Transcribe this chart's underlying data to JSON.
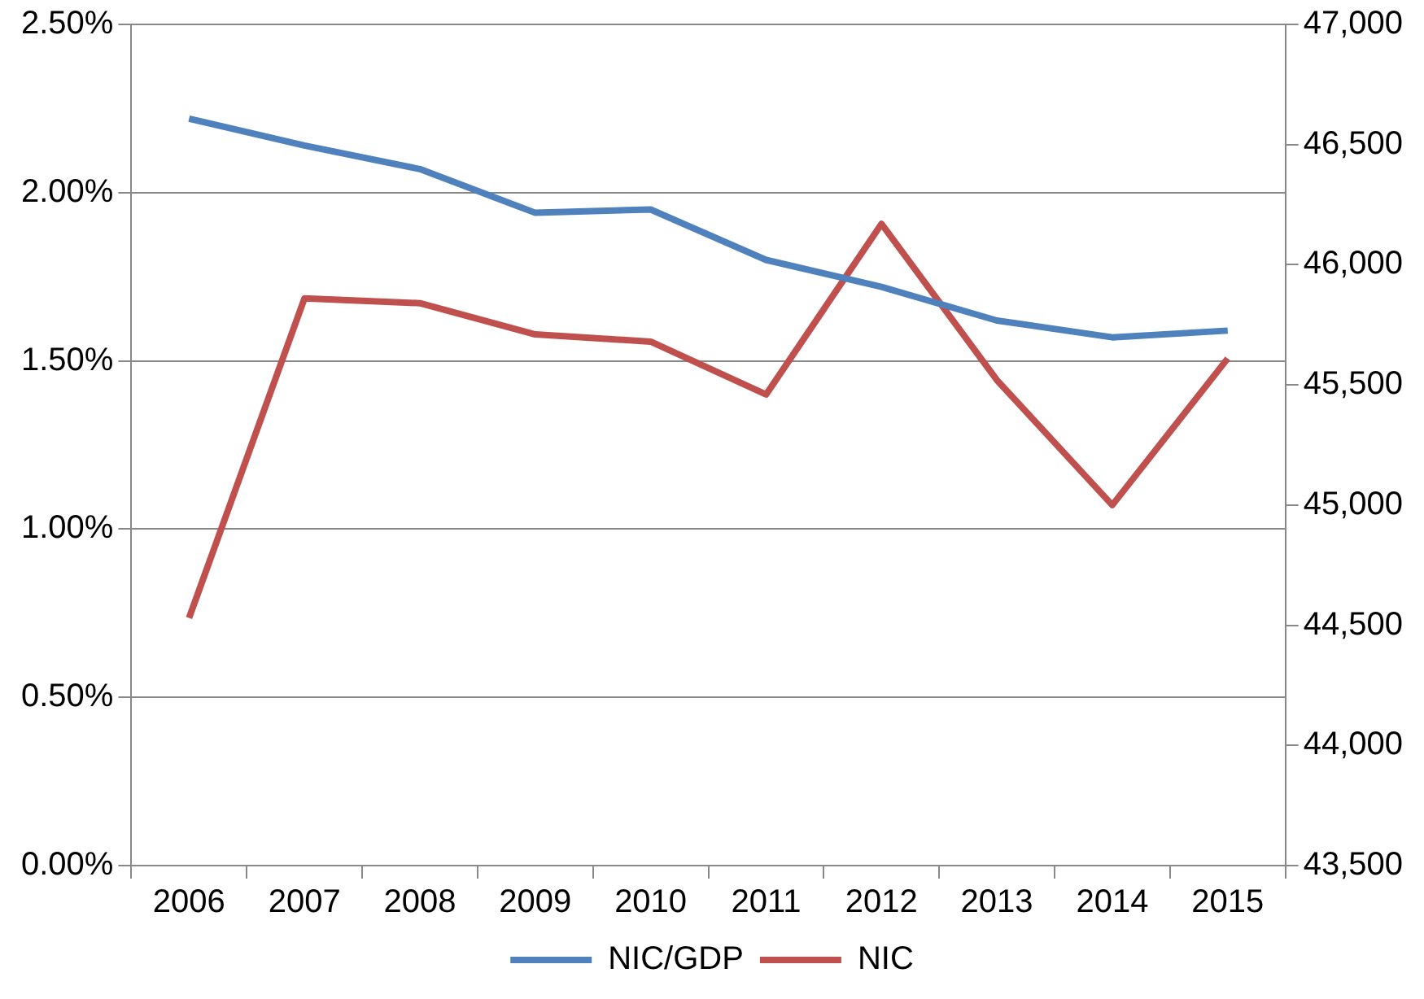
{
  "chart_data": {
    "type": "line",
    "categories": [
      "2006",
      "2007",
      "2008",
      "2009",
      "2010",
      "2011",
      "2012",
      "2013",
      "2014",
      "2015"
    ],
    "series": [
      {
        "name": "NIC/GDP",
        "color": "#4f81bd",
        "values": [
          2.22,
          2.14,
          2.07,
          1.94,
          1.95,
          1.8,
          1.72,
          1.62,
          1.57,
          1.59
        ]
      },
      {
        "name": "NIC",
        "color": "#c0504d",
        "axis": "y2",
        "values": [
          44530,
          45860,
          45840,
          45710,
          45680,
          45460,
          46170,
          45520,
          45000,
          45610
        ]
      }
    ],
    "ylim": [
      0,
      2.5
    ],
    "yticks": [
      {
        "value": 0,
        "label": "0.00%"
      },
      {
        "value": 0.5,
        "label": "0.50%"
      },
      {
        "value": 1,
        "label": "1.00%"
      },
      {
        "value": 1.5,
        "label": "1.50%"
      },
      {
        "value": 2,
        "label": "2.00%"
      },
      {
        "value": 2.5,
        "label": "2.50%"
      }
    ],
    "y2lim": [
      43500,
      47000
    ],
    "y2ticks": [
      {
        "value": 43500,
        "label": "43,500"
      },
      {
        "value": 44000,
        "label": "44,000"
      },
      {
        "value": 44500,
        "label": "44,500"
      },
      {
        "value": 45000,
        "label": "45,000"
      },
      {
        "value": 45500,
        "label": "45,500"
      },
      {
        "value": 46000,
        "label": "46,000"
      },
      {
        "value": 46500,
        "label": "46,500"
      },
      {
        "value": 47000,
        "label": "47,000"
      }
    ],
    "grid": "y",
    "legend": "bottom",
    "marker": "none",
    "line_style": "solid"
  }
}
